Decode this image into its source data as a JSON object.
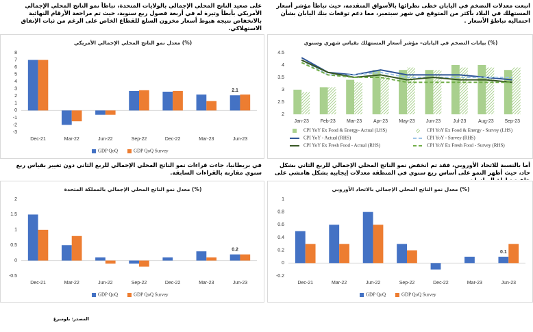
{
  "chart_data": [
    {
      "type": "bar",
      "caption": "على صعيد الناتج المحلي الإجمالي بالولايات المتحدة، تباطأ نمو الناتج المحلي الإجمالي الأمريكي بأبطأ وتيرة له في أربعة فصول ربع سنوية، حيث تم مراجعة الأرقام النهائية بالانخفاض نتيجة هبوط أسعار مخزون السلع للقطاع الخاص على الرغم من ثبات الإنفاق الاستهلاكي.",
      "title": "معدل نمو الناتج المحلي الإجمالي الأمريكي (%)",
      "categories": [
        "Dec-21",
        "Mar-22",
        "Jun-22",
        "Sep-22",
        "Dec-22",
        "Mar-23",
        "Jun-23"
      ],
      "series": [
        {
          "name": "GDP QoQ",
          "color": "#4472c4",
          "style": "bar",
          "values": [
            7.0,
            -2.0,
            -0.6,
            2.7,
            2.6,
            2.2,
            2.1
          ],
          "label_points": [
            6
          ]
        },
        {
          "name": "GDP QoQ Survey",
          "color": "#ed7d31",
          "style": "bar",
          "values": [
            7.0,
            -1.5,
            -0.6,
            2.8,
            2.7,
            1.3,
            2.2
          ]
        }
      ],
      "ylim": [
        -3,
        8
      ],
      "yticks": [
        -3,
        -2,
        -1,
        0,
        1,
        2,
        3,
        4,
        5,
        6,
        7,
        8
      ]
    },
    {
      "type": "combo",
      "caption": "اتبعت معدلات التضخم في اليابان خطى نظرائها بالأسواق المتقدمة، حيث تباطأ مؤشر أسعار المستهلك في البلاد بأكثر من المتوقع في شهر سبتمبر، مما دعم توقعات بنك اليابان بشأن احتمالية تباطؤ الأسعار .",
      "title": "بيانات التضخم في اليابان– مؤشر أسعار المستهلك بقياس شهري وسنوي (%)",
      "categories": [
        "Jan-23",
        "Feb-23",
        "Mar-23",
        "Apr-23",
        "May-23",
        "Jun-23",
        "Jul-23",
        "Aug-23",
        "Sep-23"
      ],
      "series": [
        {
          "name": "CPI YoY Ex Food & Energy- Actual (LHS)",
          "color": "#a9d08e",
          "style": "bar",
          "values": [
            3.0,
            3.1,
            3.4,
            3.8,
            3.8,
            3.8,
            4.0,
            4.0,
            3.8
          ]
        },
        {
          "name": "CPI YoY Ex Food & Energy - Survey (LHS)",
          "color": "#a9d08e",
          "style": "hatched",
          "values": [
            2.9,
            3.1,
            3.3,
            3.5,
            3.9,
            3.8,
            3.9,
            3.9,
            3.9
          ]
        },
        {
          "name": "CPI YoY - Actual (RHS)",
          "color": "#2f5597",
          "style": "line",
          "values": [
            4.3,
            3.7,
            3.6,
            3.8,
            3.6,
            3.6,
            3.6,
            3.5,
            3.4
          ]
        },
        {
          "name": "CPI YoY - Survey (RHS)",
          "color": "#9dc3e6",
          "style": "dashed",
          "values": [
            4.2,
            3.6,
            3.6,
            3.7,
            3.5,
            3.5,
            3.5,
            3.5,
            3.5
          ]
        },
        {
          "name": "CPI YoY Ex Fresh Food - Actual (RHS)",
          "color": "#375623",
          "style": "line",
          "values": [
            4.2,
            3.7,
            3.5,
            3.6,
            3.4,
            3.5,
            3.4,
            3.4,
            3.3
          ]
        },
        {
          "name": "CPI YoY Ex Fresh Food - Survey (RHS)",
          "color": "#70ad47",
          "style": "dashed",
          "values": [
            4.1,
            3.6,
            3.5,
            3.5,
            3.3,
            3.3,
            3.3,
            3.3,
            3.3
          ]
        }
      ],
      "ylim": [
        2,
        4.5
      ],
      "yticks": [
        2,
        2.5,
        3,
        3.5,
        4,
        4.5
      ]
    },
    {
      "type": "bar",
      "caption": "في بريطانيا، جاءت قراءات نمو الناتج المحلي الإجمالي للربع الثاني دون تغيير بقياس ربع سنوي مقارنة بالقراءات السابقة.",
      "title": "معدل نمو الناتج المحلي الإجمالي بالمملكة المتحدة (%)",
      "categories": [
        "Dec-21",
        "Mar-22",
        "Jun-22",
        "Sep-22",
        "Dec-22",
        "Mar-23",
        "Jun-23"
      ],
      "series": [
        {
          "name": "GDP QoQ",
          "color": "#4472c4",
          "style": "bar",
          "values": [
            1.5,
            0.5,
            0.1,
            -0.1,
            0.1,
            0.3,
            0.2
          ],
          "label_points": [
            6
          ]
        },
        {
          "name": "GDP QoQ Survey",
          "color": "#ed7d31",
          "style": "bar",
          "values": [
            1.0,
            0.8,
            -0.1,
            -0.2,
            0.0,
            0.1,
            0.2
          ]
        }
      ],
      "ylim": [
        -0.5,
        2
      ],
      "yticks": [
        -0.5,
        0,
        0.5,
        1,
        1.5,
        2
      ]
    },
    {
      "type": "bar",
      "caption": "أما بالنسبة للاتحاد الأوروبي، فقد تم انخفض نمو الناتج المحلي الإجمالي للربع الثاني بشكل حاد، حيث أظهر النمو على أساس ربع سنوي في المنطقة معدلات إيجابية بشكل هامشي على خلفية تباطؤ الصادرات.",
      "title": "معدل نمو الناتج المحلي الإجمالي بالاتحاد الأوروبي (%)",
      "categories": [
        "Dec-21",
        "Mar-22",
        "Jun-22",
        "Sep-22",
        "Dec-22",
        "Mar-23",
        "Jun-23"
      ],
      "series": [
        {
          "name": "GDP QoQ",
          "color": "#4472c4",
          "style": "bar",
          "values": [
            0.5,
            0.6,
            0.8,
            0.3,
            -0.1,
            0.1,
            0.1
          ],
          "label_points": [
            6
          ]
        },
        {
          "name": "GDP QoQ Survey",
          "color": "#ed7d31",
          "style": "bar",
          "values": [
            0.3,
            0.3,
            0.6,
            0.2,
            0.0,
            0.0,
            0.3
          ]
        }
      ],
      "ylim": [
        -0.2,
        1
      ],
      "yticks": [
        -0.2,
        0,
        0.2,
        0.4,
        0.6,
        0.8,
        1
      ]
    }
  ],
  "source": "المصدر: بلومبرغ"
}
